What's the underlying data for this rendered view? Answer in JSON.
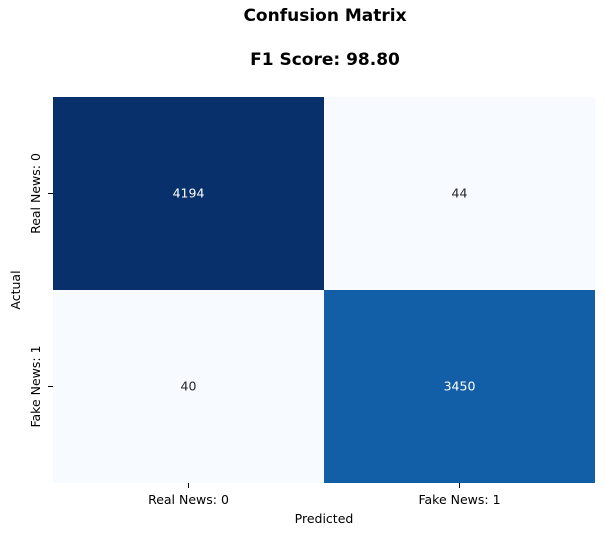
{
  "chart_data": {
    "type": "heatmap",
    "title": "Confusion Matrix",
    "subtitle": "F1 Score: 98.80",
    "xlabel": "Predicted",
    "ylabel": "Actual",
    "x_categories": [
      "Real News: 0",
      "Fake News: 1"
    ],
    "y_categories": [
      "Real News: 0",
      "Fake News: 1"
    ],
    "values": [
      [
        4194,
        44
      ],
      [
        40,
        3450
      ]
    ],
    "colormap": "Blues",
    "colorbar": false,
    "colors": {
      "min": "#f7fbff",
      "max": "#08306b",
      "text_dark_bg": "#ffffff",
      "text_light_bg": "#262626"
    }
  }
}
